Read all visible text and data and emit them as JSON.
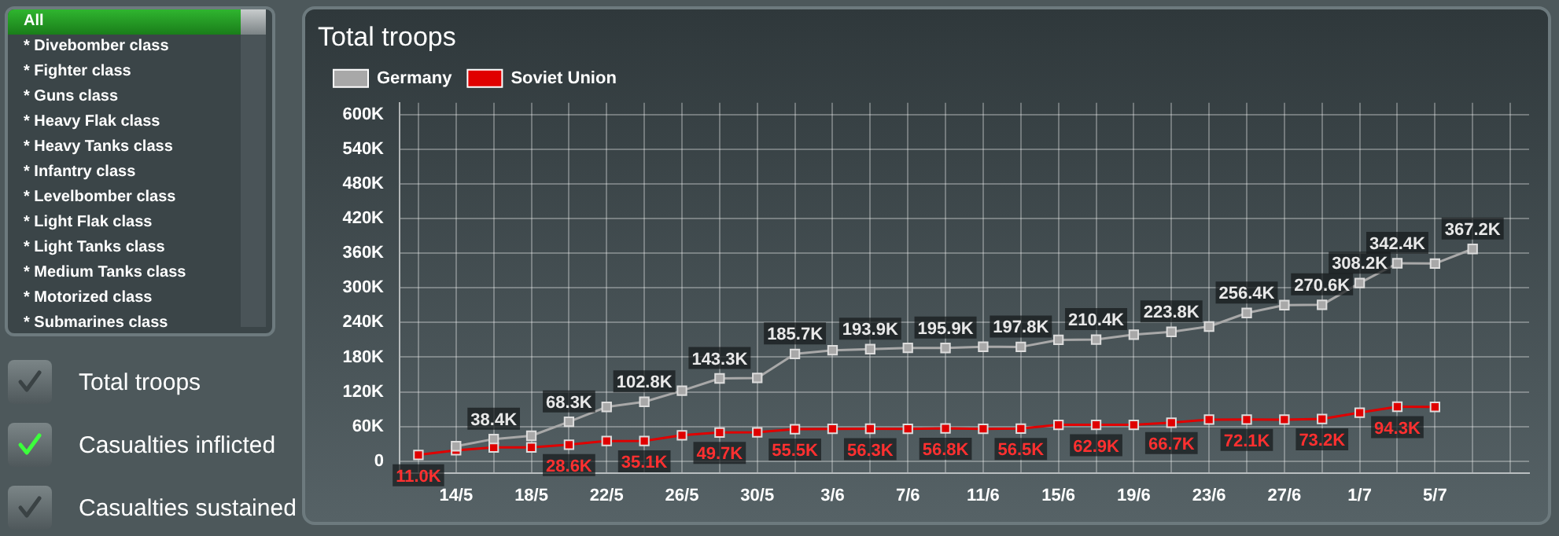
{
  "chart_data": {
    "type": "line",
    "title": "Total troops",
    "legend": "top left",
    "grid": true,
    "marker": "square",
    "line_style": "solid",
    "xlim": [
      "--05-11",
      "--07-10"
    ],
    "xticks": [
      {
        "value": "--05-12",
        "label": null
      },
      {
        "value": "--05-14",
        "label": "14/5"
      },
      {
        "value": "--05-16",
        "label": null
      },
      {
        "value": "--05-18",
        "label": "18/5"
      },
      {
        "value": "--05-20",
        "label": null
      },
      {
        "value": "--05-22",
        "label": "22/5"
      },
      {
        "value": "--05-24",
        "label": null
      },
      {
        "value": "--05-26",
        "label": "26/5"
      },
      {
        "value": "--05-28",
        "label": null
      },
      {
        "value": "--05-30",
        "label": "30/5"
      },
      {
        "value": "--06-01",
        "label": null
      },
      {
        "value": "--06-03",
        "label": "3/6"
      },
      {
        "value": "--06-05",
        "label": null
      },
      {
        "value": "--06-07",
        "label": "7/6"
      },
      {
        "value": "--06-09",
        "label": null
      },
      {
        "value": "--06-11",
        "label": "11/6"
      },
      {
        "value": "--06-13",
        "label": null
      },
      {
        "value": "--06-15",
        "label": "15/6"
      },
      {
        "value": "--06-17",
        "label": null
      },
      {
        "value": "--06-19",
        "label": "19/6"
      },
      {
        "value": "--06-21",
        "label": null
      },
      {
        "value": "--06-23",
        "label": "23/6"
      },
      {
        "value": "--06-25",
        "label": null
      },
      {
        "value": "--06-27",
        "label": "27/6"
      },
      {
        "value": "--06-29",
        "label": null
      },
      {
        "value": "--07-01",
        "label": "1/7"
      },
      {
        "value": "--07-03",
        "label": null
      },
      {
        "value": "--07-05",
        "label": "5/7"
      },
      {
        "value": "--07-07",
        "label": null
      },
      {
        "value": "--07-09",
        "label": null
      }
    ],
    "ylim": [
      -20000,
      620000
    ],
    "yticks": [
      0,
      {
        "value": 60000,
        "label": "60K"
      },
      {
        "value": 120000,
        "label": "120K"
      },
      {
        "value": 180000,
        "label": "180K"
      },
      {
        "value": 240000,
        "label": "240K"
      },
      {
        "value": 300000,
        "label": "300K"
      },
      {
        "value": 360000,
        "label": "360K"
      },
      {
        "value": 420000,
        "label": "420K"
      },
      {
        "value": 480000,
        "label": "480K"
      },
      {
        "value": 540000,
        "label": "540K"
      },
      {
        "value": 600000,
        "label": "600K"
      }
    ],
    "series": [
      {
        "name": "Germany",
        "color": "#a8a8a8",
        "x": [
          "--05-14",
          "--05-16",
          "--05-18",
          "--05-20",
          "--05-22",
          "--05-24",
          "--05-26",
          "--05-28",
          "--05-30",
          "--06-01",
          "--06-03",
          "--06-05",
          "--06-07",
          "--06-09",
          "--06-11",
          "--06-13",
          "--06-15",
          "--06-17",
          "--06-19",
          "--06-21",
          "--06-23",
          "--06-25",
          "--06-27",
          "--06-29",
          "--07-01",
          "--07-03",
          "--07-05",
          "--07-07"
        ],
        "values": [
          26000,
          38400,
          44000,
          68300,
          94000,
          102800,
          122000,
          143300,
          144000,
          185700,
          192000,
          193900,
          196000,
          195900,
          198000,
          197800,
          210000,
          210400,
          219000,
          223800,
          233000,
          256400,
          270000,
          270600,
          308200,
          342400,
          342000,
          367200
        ],
        "value_labels": [
          null,
          "38.4K",
          null,
          "68.3K",
          null,
          "102.8K",
          null,
          "143.3K",
          null,
          "185.7K",
          null,
          "193.9K",
          null,
          "195.9K",
          null,
          "197.8K",
          null,
          "210.4K",
          null,
          "223.8K",
          null,
          "256.4K",
          null,
          "270.6K",
          "308.2K",
          "342.4K",
          null,
          "367.2K"
        ]
      },
      {
        "name": "Soviet Union",
        "color": "#e00000",
        "x": [
          "--05-12",
          "--05-14",
          "--05-16",
          "--05-18",
          "--05-20",
          "--05-22",
          "--05-24",
          "--05-26",
          "--05-28",
          "--05-30",
          "--06-01",
          "--06-03",
          "--06-05",
          "--06-07",
          "--06-09",
          "--06-11",
          "--06-13",
          "--06-15",
          "--06-17",
          "--06-19",
          "--06-21",
          "--06-23",
          "--06-25",
          "--06-27",
          "--06-29",
          "--07-01",
          "--07-03",
          "--07-05"
        ],
        "values": [
          11000,
          19000,
          24000,
          24000,
          28600,
          35000,
          35100,
          45000,
          49700,
          50000,
          55500,
          56000,
          56300,
          56000,
          56800,
          56000,
          56500,
          63000,
          62900,
          63000,
          66700,
          72000,
          72100,
          72000,
          73200,
          84000,
          94300,
          94000
        ],
        "value_labels": [
          "11.0K",
          null,
          null,
          null,
          "28.6K",
          null,
          "35.1K",
          null,
          "49.7K",
          null,
          "55.5K",
          null,
          "56.3K",
          null,
          "56.8K",
          null,
          "56.5K",
          null,
          "62.9K",
          null,
          "66.7K",
          null,
          "72.1K",
          null,
          "73.2K",
          null,
          "94.3K",
          null
        ]
      }
    ],
    "annotations": [
      "All",
      "* Divebomber class",
      "* Fighter class",
      "* Guns class",
      "* Heavy Flak class",
      "* Heavy Tanks class",
      "* Infantry class",
      "* Levelbomber class",
      "* Light Flak class",
      "* Light Tanks class",
      "* Medium Tanks class",
      "* Motorized class",
      "* Submarines class",
      "Total troops",
      "Casualties inflicted",
      "Casualties sustained"
    ]
  }
}
